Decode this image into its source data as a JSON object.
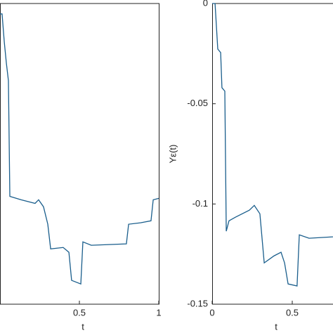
{
  "chart_data": [
    {
      "type": "line",
      "xlabel": "t",
      "xlim": [
        0,
        1
      ],
      "ylim": [
        -0.15,
        0
      ],
      "xticks": [
        0.5,
        1
      ],
      "yticks": [],
      "series": [
        {
          "color": "#1a5e8c",
          "x": [
            0,
            0.013,
            0.027,
            0.04,
            0.053,
            0.062,
            0.133,
            0.221,
            0.243,
            0.274,
            0.301,
            0.319,
            0.398,
            0.434,
            0.451,
            0.509,
            0.522,
            0.575,
            0.796,
            0.81,
            0.885,
            0.951,
            0.965,
            1
          ],
          "values": [
            -0.0052,
            -0.0052,
            -0.0192,
            -0.0297,
            -0.0385,
            -0.0962,
            -0.0979,
            -0.0997,
            -0.0979,
            -0.1014,
            -0.1101,
            -0.1224,
            -0.1217,
            -0.1241,
            -0.1381,
            -0.1399,
            -0.1189,
            -0.1206,
            -0.1199,
            -0.1101,
            -0.1094,
            -0.1084,
            -0.0979,
            -0.0972
          ]
        }
      ]
    },
    {
      "type": "line",
      "xlabel": "t",
      "ylabel": "Yε(t)",
      "xlim": [
        0,
        1
      ],
      "ylim": [
        -0.15,
        0
      ],
      "xticks": [
        0,
        0.5
      ],
      "yticks": [
        0,
        -0.05,
        -0.1,
        -0.15
      ],
      "series": [
        {
          "color": "#1a5e8c",
          "x": [
            0,
            0.018,
            0.035,
            0.053,
            0.061,
            0.079,
            0.088,
            0.105,
            0.145,
            0.232,
            0.263,
            0.298,
            0.325,
            0.386,
            0.43,
            0.452,
            0.474,
            0.53,
            0.544,
            0.605,
            0.754
          ],
          "values": [
            0,
            0,
            -0.0227,
            -0.0245,
            -0.042,
            -0.0437,
            -0.1136,
            -0.1084,
            -0.1066,
            -0.1031,
            -0.1007,
            -0.1049,
            -0.1294,
            -0.1259,
            -0.1241,
            -0.1294,
            -0.1399,
            -0.1409,
            -0.1154,
            -0.1171,
            -0.1164
          ]
        }
      ]
    }
  ]
}
